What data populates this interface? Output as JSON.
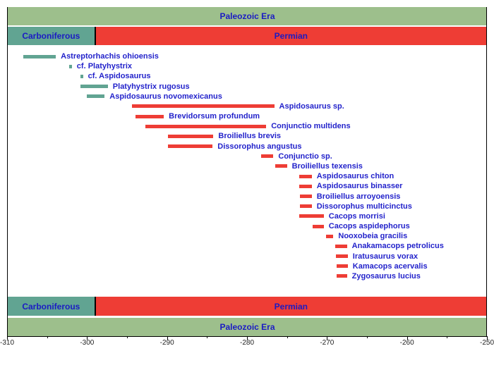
{
  "chart_data": {
    "type": "bar",
    "subtype": "stratigraphic-range-chart",
    "title": "",
    "xlabel": "",
    "x_unit": "Ma",
    "xlim": [
      -310,
      -250
    ],
    "x_major_ticks": [
      -310,
      -300,
      -290,
      -280,
      -270,
      -260,
      -250
    ],
    "x_minor_ticks": [
      -305,
      -295,
      -285,
      -275,
      -265,
      -255
    ],
    "grid": false,
    "legend": false,
    "era_band": {
      "label": "Paleozoic Era",
      "start": -310,
      "end": -250,
      "color": "#9dbf8c"
    },
    "period_bands": [
      {
        "label": "Carboniferous",
        "start": -310,
        "end": -299,
        "color": "#61a492"
      },
      {
        "label": "Permian",
        "start": -299,
        "end": -250,
        "color": "#ee3d35"
      }
    ],
    "taxa": [
      {
        "name": "Astreptorhachis ohioensis",
        "start": -308.0,
        "end": -303.9,
        "color": "#61a492"
      },
      {
        "name": "cf. Platyhystrix",
        "start": -302.2,
        "end": -301.9,
        "color": "#61a492"
      },
      {
        "name": "cf. Aspidosaurus",
        "start": -300.8,
        "end": -300.5,
        "color": "#61a492"
      },
      {
        "name": "Platyhystrix rugosus",
        "start": -300.8,
        "end": -297.4,
        "color": "#61a492"
      },
      {
        "name": "Aspidosaurus novomexicanus",
        "start": -300.0,
        "end": -297.8,
        "color": "#61a492"
      },
      {
        "name": "Aspidosaurus sp.",
        "start": -294.4,
        "end": -276.6,
        "color": "#ee3d35"
      },
      {
        "name": "Brevidorsum profundum",
        "start": -293.9,
        "end": -290.4,
        "color": "#ee3d35"
      },
      {
        "name": "Conjunctio multidens",
        "start": -292.7,
        "end": -277.6,
        "color": "#ee3d35"
      },
      {
        "name": "Broiliellus brevis",
        "start": -289.9,
        "end": -284.2,
        "color": "#ee3d35"
      },
      {
        "name": "Dissorophus angustus",
        "start": -289.9,
        "end": -284.3,
        "color": "#ee3d35"
      },
      {
        "name": "Conjunctio sp.",
        "start": -278.2,
        "end": -276.7,
        "color": "#ee3d35"
      },
      {
        "name": "Broiliellus texensis",
        "start": -276.5,
        "end": -275.0,
        "color": "#ee3d35"
      },
      {
        "name": "Aspidosaurus chiton",
        "start": -273.5,
        "end": -271.9,
        "color": "#ee3d35"
      },
      {
        "name": "Aspidosaurus binasser",
        "start": -273.5,
        "end": -271.9,
        "color": "#ee3d35"
      },
      {
        "name": "Broiliellus arroyoensis",
        "start": -273.4,
        "end": -271.9,
        "color": "#ee3d35"
      },
      {
        "name": "Dissorophus multicinctus",
        "start": -273.4,
        "end": -271.9,
        "color": "#ee3d35"
      },
      {
        "name": "Cacops morrisi",
        "start": -273.5,
        "end": -270.4,
        "color": "#ee3d35"
      },
      {
        "name": "Cacops aspidephorus",
        "start": -271.8,
        "end": -270.4,
        "color": "#ee3d35"
      },
      {
        "name": "Nooxobeia gracilis",
        "start": -270.1,
        "end": -269.2,
        "color": "#ee3d35"
      },
      {
        "name": "Anakamacops petrolicus",
        "start": -269.0,
        "end": -267.5,
        "color": "#ee3d35"
      },
      {
        "name": "Iratusaurus vorax",
        "start": -268.9,
        "end": -267.4,
        "color": "#ee3d35"
      },
      {
        "name": "Kamacops acervalis",
        "start": -268.8,
        "end": -267.4,
        "color": "#ee3d35"
      },
      {
        "name": "Zygosaurus lucius",
        "start": -268.8,
        "end": -267.5,
        "color": "#ee3d35"
      }
    ],
    "colors": {
      "taxon_label_text": "#2323cb",
      "band_label_text": "#1b1bc4",
      "axis_tick_text": "#222222",
      "plot_border": "#000000"
    }
  }
}
